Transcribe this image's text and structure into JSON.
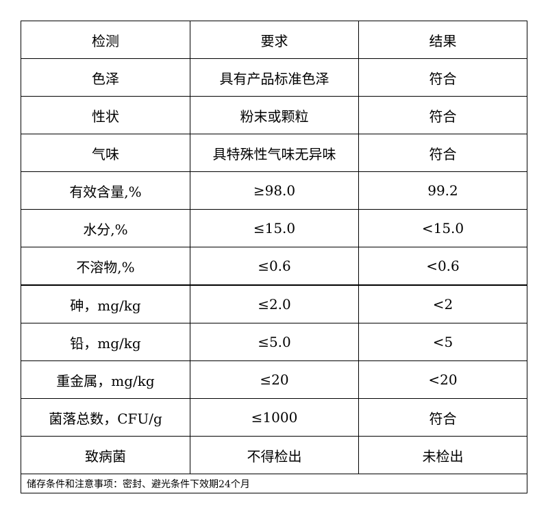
{
  "header": [
    "检测",
    "要求",
    "结果"
  ],
  "rows": [
    [
      "色泽",
      "具有产品标准色泽",
      "符合"
    ],
    [
      "性状",
      "粉末或颗粒",
      "符合"
    ],
    [
      "气味",
      "具特殊性气味无异味",
      "符合"
    ],
    [
      "有效含量,%",
      "≥98.0",
      "99.2"
    ],
    [
      "水分,%",
      "≤15.0",
      "<15.0"
    ],
    [
      "不溶物,%",
      "≤0.6",
      "<0.6"
    ],
    [
      "砷，mg/kg",
      "≤2.0",
      "<2"
    ],
    [
      "铅，mg/kg",
      "≤5.0",
      "<5"
    ],
    [
      "重金属，mg/kg",
      "≤20",
      "<20"
    ],
    [
      "菌落总数，CFU/g",
      "≤1000",
      "符合"
    ],
    [
      "致病菌",
      "不得检出",
      "未检出"
    ]
  ],
  "footer": "储存条件和注意事项：密封、避光条件下效期24个月"
}
